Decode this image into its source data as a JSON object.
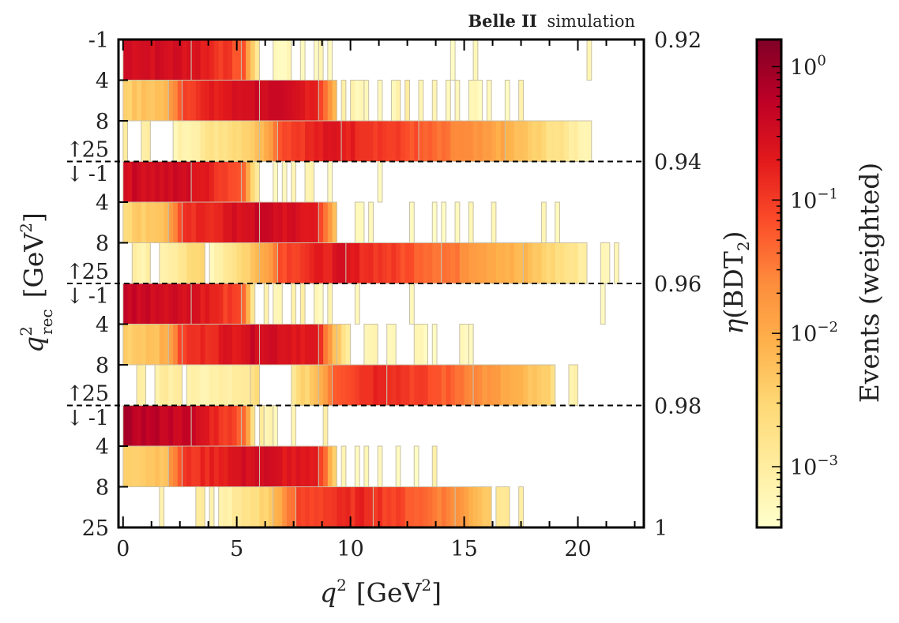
{
  "chart_data": {
    "type": "heatmap",
    "title": "",
    "annotation": {
      "bold": "Belle II",
      "normal": "simulation",
      "position": "top-right"
    },
    "xlabel": "q^2 [GeV^2]",
    "xlabel_parts": {
      "var": "q",
      "sup": "2",
      "unit": "[GeV",
      "unit_sup": "2",
      "close": "]"
    },
    "ylabel_left": "q^2_rec [GeV^2]",
    "ylabel_left_parts": {
      "var": "q",
      "sup": "2",
      "sub": "rec",
      "unit": "[GeV",
      "unit_sup": "2",
      "close": "]"
    },
    "ylabel_right": "η(BDT_2)",
    "ylabel_right_parts": {
      "eta": "η",
      "open": "(BDT",
      "sub": "2",
      "close": ")"
    },
    "xlim": [
      -0.2,
      22.9
    ],
    "xticks": [
      0,
      5,
      10,
      15,
      20
    ],
    "xtick_labels": [
      "0",
      "5",
      "10",
      "15",
      "20"
    ],
    "xminor_step": 1.25,
    "bin_width": 0.2,
    "eta_sections": [
      "0.92-0.94",
      "0.94-0.96",
      "0.96-0.98",
      "0.98-1"
    ],
    "right_tick_labels": [
      "0.92",
      "0.94",
      "0.96",
      "0.98",
      "1"
    ],
    "qrec_bins": [
      "-1-4",
      "4-8",
      "8-25"
    ],
    "left_tick_labels": {
      "first_top": "-1",
      "mid": [
        "4",
        "8"
      ],
      "boundary_upper": "25",
      "boundary_lower": "-1",
      "last_bottom": "25",
      "arrow_up": "↑",
      "arrow_down": "↓"
    },
    "colorbar": {
      "label": "Events (weighted)",
      "scale": "log",
      "range": [
        0.00035,
        1.6
      ],
      "ticks": [
        1,
        0.1,
        0.01,
        0.001
      ],
      "tick_labels": [
        {
          "base": "10",
          "exp": "0"
        },
        {
          "base": "10",
          "exp": "−1"
        },
        {
          "base": "10",
          "exp": "−2"
        },
        {
          "base": "10",
          "exp": "−3"
        }
      ],
      "colormap": "YlOrRd",
      "stops": [
        "#ffffcc",
        "#ffeda0",
        "#fed976",
        "#feb24c",
        "#fd8d3c",
        "#fc4e2a",
        "#e31a1c",
        "#bd0026",
        "#800026"
      ]
    },
    "rows_note": "Each row: list of segments [x_start, x_end, log10_start, log10_end] (weights interpolated per 0.2 GeV^2 bin); sparse single bins listed in 'spikes' as [x, log10w, width_bins].",
    "rows": [
      {
        "section": "0.92-0.94",
        "qrec": "-1-4",
        "segments": [
          [
            0,
            3.0,
            -0.45,
            -0.55
          ],
          [
            3.0,
            5.2,
            -0.55,
            -1.2
          ],
          [
            5.2,
            6.0,
            -1.3,
            -2.9
          ]
        ],
        "spikes": [
          [
            6.6,
            -3.3,
            4
          ],
          [
            7.8,
            -3.3,
            1
          ],
          [
            8.4,
            -3.3,
            1
          ],
          [
            8.6,
            -3.2,
            1
          ],
          [
            9.0,
            -3.3,
            1
          ],
          [
            14.4,
            -3.3,
            1
          ],
          [
            15.4,
            -3.3,
            1
          ],
          [
            20.4,
            -3.2,
            1
          ]
        ]
      },
      {
        "section": "0.92-0.94",
        "qrec": "4-8",
        "segments": [
          [
            0,
            2.0,
            -2.4,
            -2.2
          ],
          [
            2.0,
            2.6,
            -1.8,
            -1.2
          ],
          [
            2.6,
            6.0,
            -1.0,
            -0.42
          ],
          [
            6.0,
            8.6,
            -0.42,
            -0.7
          ],
          [
            8.6,
            9.4,
            -1.0,
            -2.2
          ]
        ],
        "spikes": [
          [
            9.6,
            -3.0,
            1
          ],
          [
            10.0,
            -3.2,
            3
          ],
          [
            10.6,
            -3.3,
            1
          ],
          [
            11.2,
            -3.3,
            1
          ],
          [
            11.8,
            -3.2,
            2
          ],
          [
            12.4,
            -3.0,
            1
          ],
          [
            13.0,
            -3.3,
            1
          ],
          [
            13.6,
            -3.2,
            1
          ],
          [
            14.2,
            -3.3,
            1
          ],
          [
            14.6,
            -3.2,
            1
          ],
          [
            15.2,
            -3.3,
            3
          ],
          [
            16.0,
            -3.2,
            1
          ],
          [
            16.8,
            -3.3,
            1
          ],
          [
            17.4,
            -3.2,
            1
          ]
        ]
      },
      {
        "section": "0.92-0.94",
        "qrec": "8-25",
        "segments": [
          [
            0,
            0.2,
            -3.0,
            -3.0
          ],
          [
            0.8,
            1.2,
            -3.1,
            -3.1
          ],
          [
            2.2,
            6.0,
            -3.2,
            -2.3
          ],
          [
            6.0,
            6.8,
            -2.1,
            -1.5
          ],
          [
            6.8,
            9.6,
            -1.1,
            -0.6
          ],
          [
            9.6,
            13.0,
            -0.7,
            -1.2
          ],
          [
            13.0,
            16.8,
            -1.3,
            -2.0
          ],
          [
            16.8,
            20.6,
            -2.1,
            -3.2
          ]
        ],
        "spikes": []
      },
      {
        "section": "0.94-0.96",
        "qrec": "-1-4",
        "segments": [
          [
            0,
            3.0,
            -0.45,
            -0.5
          ],
          [
            3.0,
            5.2,
            -0.55,
            -1.2
          ],
          [
            5.2,
            6.0,
            -1.3,
            -3.0
          ]
        ],
        "spikes": [
          [
            6.6,
            -3.3,
            1
          ],
          [
            7.0,
            -3.3,
            1
          ],
          [
            7.4,
            -3.3,
            1
          ],
          [
            8.0,
            -3.1,
            2
          ],
          [
            9.0,
            -3.3,
            1
          ],
          [
            11.2,
            -3.3,
            1
          ]
        ]
      },
      {
        "section": "0.94-0.96",
        "qrec": "4-8",
        "segments": [
          [
            0,
            2.0,
            -2.5,
            -2.2
          ],
          [
            2.0,
            2.6,
            -1.8,
            -1.2
          ],
          [
            2.6,
            6.0,
            -1.0,
            -0.42
          ],
          [
            6.0,
            8.6,
            -0.42,
            -0.7
          ],
          [
            8.6,
            9.4,
            -1.0,
            -2.3
          ]
        ],
        "spikes": [
          [
            10.2,
            -3.3,
            2
          ],
          [
            10.8,
            -3.3,
            1
          ],
          [
            12.6,
            -3.3,
            1
          ],
          [
            13.6,
            -3.3,
            1
          ],
          [
            14.0,
            -3.3,
            1
          ],
          [
            14.6,
            -3.3,
            1
          ],
          [
            15.2,
            -3.3,
            1
          ],
          [
            16.2,
            -3.3,
            1
          ],
          [
            18.4,
            -3.3,
            1
          ],
          [
            19.0,
            -3.3,
            1
          ]
        ]
      },
      {
        "section": "0.94-0.96",
        "qrec": "8-25",
        "segments": [
          [
            0.4,
            1.2,
            -3.1,
            -3.1
          ],
          [
            1.6,
            3.6,
            -3.1,
            -2.5
          ],
          [
            3.8,
            6.0,
            -3.2,
            -2.2
          ],
          [
            6.0,
            6.8,
            -2.0,
            -1.5
          ],
          [
            6.8,
            9.8,
            -1.1,
            -0.6
          ],
          [
            9.8,
            14.0,
            -0.7,
            -1.4
          ],
          [
            14.0,
            17.6,
            -1.4,
            -2.2
          ],
          [
            17.6,
            20.4,
            -2.2,
            -3.0
          ]
        ],
        "spikes": [
          [
            21.0,
            -3.2,
            2
          ],
          [
            21.6,
            -3.3,
            1
          ]
        ]
      },
      {
        "section": "0.96-0.98",
        "qrec": "-1-4",
        "segments": [
          [
            0,
            3.0,
            -0.35,
            -0.5
          ],
          [
            3.0,
            5.2,
            -0.5,
            -1.2
          ],
          [
            5.2,
            5.8,
            -1.3,
            -2.8
          ]
        ],
        "spikes": [
          [
            6.2,
            -3.2,
            1
          ],
          [
            6.6,
            -3.3,
            2
          ],
          [
            7.4,
            -3.1,
            1
          ],
          [
            7.8,
            -3.0,
            1
          ],
          [
            8.4,
            -3.3,
            2
          ],
          [
            9.0,
            -3.2,
            1
          ],
          [
            10.2,
            -3.3,
            1
          ],
          [
            12.6,
            -3.3,
            1
          ],
          [
            21.0,
            -3.3,
            1
          ]
        ]
      },
      {
        "section": "0.96-0.98",
        "qrec": "4-8",
        "segments": [
          [
            0,
            2.0,
            -2.4,
            -2.1
          ],
          [
            2.0,
            2.6,
            -1.8,
            -1.2
          ],
          [
            2.6,
            6.0,
            -1.0,
            -0.42
          ],
          [
            6.0,
            8.6,
            -0.42,
            -0.7
          ],
          [
            8.6,
            9.4,
            -1.0,
            -2.3
          ],
          [
            9.4,
            10.0,
            -2.4,
            -2.9
          ]
        ],
        "spikes": [
          [
            10.6,
            -3.2,
            3
          ],
          [
            11.6,
            -3.3,
            2
          ],
          [
            12.8,
            -3.3,
            3
          ],
          [
            13.6,
            -3.3,
            1
          ],
          [
            14.8,
            -3.3,
            3
          ],
          [
            15.2,
            -3.3,
            1
          ]
        ]
      },
      {
        "section": "0.96-0.98",
        "qrec": "8-25",
        "segments": [
          [
            0.6,
            1.0,
            -3.0,
            -3.0
          ],
          [
            1.4,
            2.6,
            -3.1,
            -2.9
          ],
          [
            2.8,
            5.6,
            -3.2,
            -3.0
          ],
          [
            5.6,
            6.0,
            -2.8,
            -2.6
          ],
          [
            7.4,
            8.6,
            -2.8,
            -2.2
          ],
          [
            8.6,
            9.2,
            -2.0,
            -1.5
          ],
          [
            9.2,
            11.6,
            -1.2,
            -0.7
          ],
          [
            11.6,
            15.4,
            -0.8,
            -1.5
          ],
          [
            15.4,
            19.0,
            -1.6,
            -2.6
          ]
        ],
        "spikes": [
          [
            19.6,
            -3.1,
            2
          ]
        ]
      },
      {
        "section": "0.98-1",
        "qrec": "-1-4",
        "segments": [
          [
            0,
            3.0,
            -0.2,
            -0.4
          ],
          [
            3.0,
            5.2,
            -0.45,
            -1.2
          ],
          [
            5.2,
            5.8,
            -1.3,
            -2.6
          ]
        ],
        "spikes": [
          [
            6.0,
            -2.9,
            1
          ],
          [
            6.2,
            -3.2,
            2
          ],
          [
            6.6,
            -3.3,
            1
          ],
          [
            7.4,
            -3.2,
            1
          ],
          [
            8.8,
            -3.1,
            1
          ]
        ]
      },
      {
        "section": "0.98-1",
        "qrec": "4-8",
        "segments": [
          [
            0,
            2.0,
            -2.4,
            -2.2
          ],
          [
            2.0,
            2.6,
            -1.8,
            -1.2
          ],
          [
            2.6,
            6.0,
            -1.0,
            -0.45
          ],
          [
            6.0,
            8.6,
            -0.5,
            -0.8
          ],
          [
            8.6,
            9.4,
            -1.0,
            -2.4
          ]
        ],
        "spikes": [
          [
            9.6,
            -3.2,
            1
          ],
          [
            10.2,
            -3.3,
            1
          ],
          [
            10.6,
            -3.3,
            1
          ],
          [
            11.2,
            -3.3,
            1
          ],
          [
            12.0,
            -3.3,
            1
          ],
          [
            12.8,
            -3.3,
            1
          ],
          [
            13.6,
            -3.0,
            1
          ]
        ]
      },
      {
        "section": "0.98-1",
        "qrec": "8-25",
        "segments": [
          [
            1.6,
            1.8,
            -3.1,
            -3.1
          ],
          [
            3.2,
            3.6,
            -3.0,
            -3.0
          ],
          [
            3.8,
            4.0,
            -3.2,
            -3.2
          ],
          [
            4.2,
            6.6,
            -3.2,
            -2.4
          ],
          [
            6.6,
            7.6,
            -2.1,
            -1.4
          ],
          [
            7.6,
            11.0,
            -1.1,
            -0.8
          ],
          [
            11.0,
            14.6,
            -0.9,
            -1.6
          ],
          [
            14.6,
            16.2,
            -1.7,
            -2.4
          ]
        ],
        "spikes": [
          [
            16.4,
            -2.8,
            3
          ],
          [
            17.4,
            -3.0,
            1
          ]
        ]
      }
    ]
  }
}
